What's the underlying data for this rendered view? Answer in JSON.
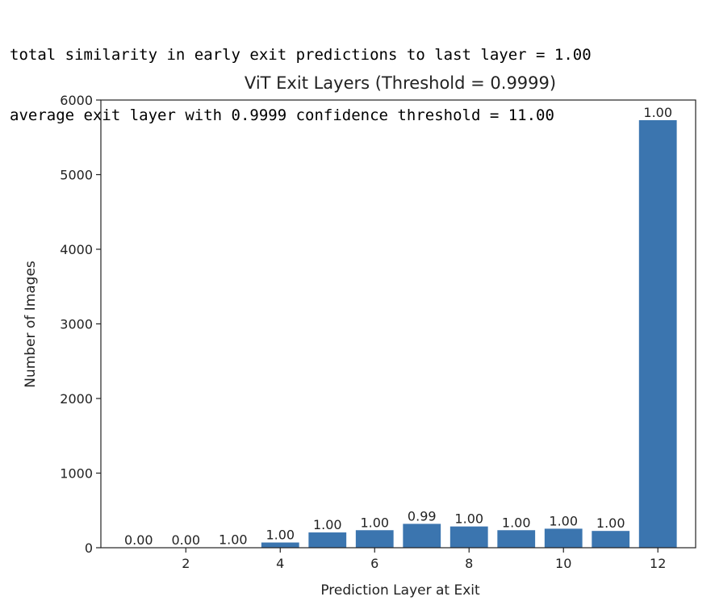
{
  "console_output": {
    "line1": "total similarity in early exit predictions to last layer = 1.00",
    "line2": "average exit layer with 0.9999 confidence threshold = 11.00"
  },
  "colors": {
    "bar": "#3b75af",
    "axis": "#222222",
    "text": "#222222"
  },
  "chart_data": {
    "type": "bar",
    "title": "ViT Exit Layers (Threshold = 0.9999)",
    "xlabel": "Prediction Layer at Exit",
    "ylabel": "Number of Images",
    "categories": [
      1,
      2,
      3,
      4,
      5,
      6,
      7,
      8,
      9,
      10,
      11,
      12
    ],
    "values": [
      0,
      0,
      3,
      70,
      205,
      235,
      320,
      285,
      235,
      255,
      225,
      5730
    ],
    "bar_labels": [
      "0.00",
      "0.00",
      "1.00",
      "1.00",
      "1.00",
      "1.00",
      "0.99",
      "1.00",
      "1.00",
      "1.00",
      "1.00",
      "1.00"
    ],
    "xlim": [
      0.2,
      12.8
    ],
    "ylim": [
      0,
      6000
    ],
    "xticks": [
      2,
      4,
      6,
      8,
      10,
      12
    ],
    "yticks": [
      0,
      1000,
      2000,
      3000,
      4000,
      5000,
      6000
    ],
    "grid": false,
    "legend": "none"
  }
}
